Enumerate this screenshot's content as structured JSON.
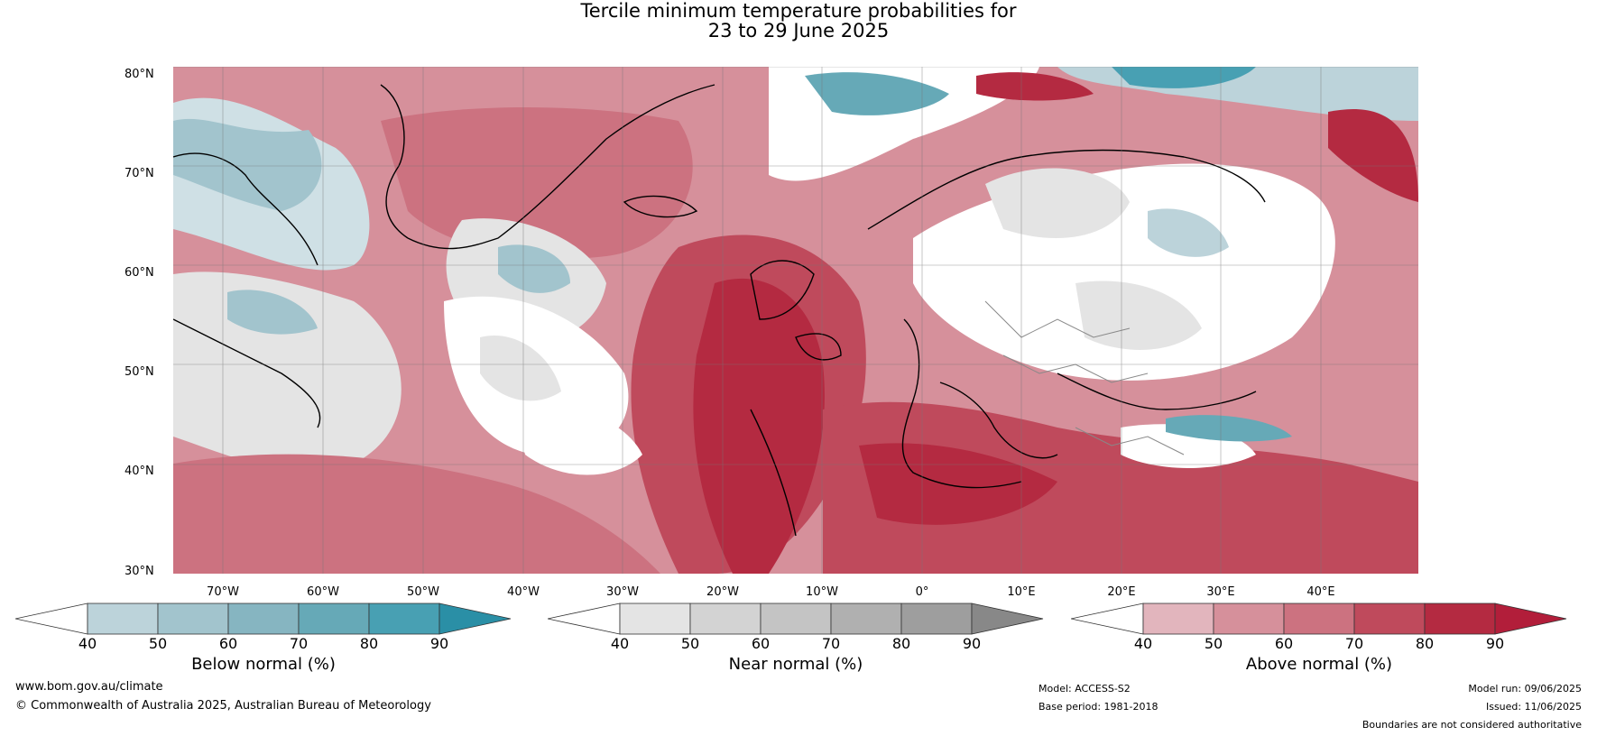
{
  "title_line1": "Tercile minimum temperature probabilities for",
  "title_line2": "23 to 29 June 2025",
  "lat_labels": [
    "80°N",
    "70°N",
    "60°N",
    "50°N",
    "40°N",
    "30°N"
  ],
  "lon_labels": [
    "70°W",
    "60°W",
    "50°W",
    "40°W",
    "30°W",
    "20°W",
    "10°W",
    "0°",
    "10°E",
    "20°E",
    "30°E",
    "40°E"
  ],
  "colorbars": [
    {
      "label": "Below normal (%)",
      "ticks": [
        "40",
        "50",
        "60",
        "70",
        "80",
        "90"
      ],
      "colors": [
        "#ffffff",
        "#bcd3da",
        "#a2c4cd",
        "#86b5c1",
        "#66a9b7",
        "#48a0b3",
        "#2a8fa6"
      ]
    },
    {
      "label": "Near normal (%)",
      "ticks": [
        "40",
        "50",
        "60",
        "70",
        "80",
        "90"
      ],
      "colors": [
        "#ffffff",
        "#e4e4e4",
        "#d3d3d3",
        "#c4c4c4",
        "#b0b0b0",
        "#9e9e9e",
        "#888888"
      ]
    },
    {
      "label": "Above normal (%)",
      "ticks": [
        "40",
        "50",
        "60",
        "70",
        "80",
        "90"
      ],
      "colors": [
        "#ffffff",
        "#e2b5bd",
        "#d6909b",
        "#cc7280",
        "#bf4a5c",
        "#b42a41",
        "#b21e3a"
      ]
    }
  ],
  "footer": {
    "website": "www.bom.gov.au/climate",
    "copyright": "© Commonwealth of Australia 2025, Australian Bureau of Meteorology",
    "model": "Model: ACCESS-S2",
    "base_period": "Base period: 1981-2018",
    "model_run": "Model run: 09/06/2025",
    "issued": "Issued: 11/06/2025",
    "disclaimer": "Boundaries are not considered authoritative"
  }
}
